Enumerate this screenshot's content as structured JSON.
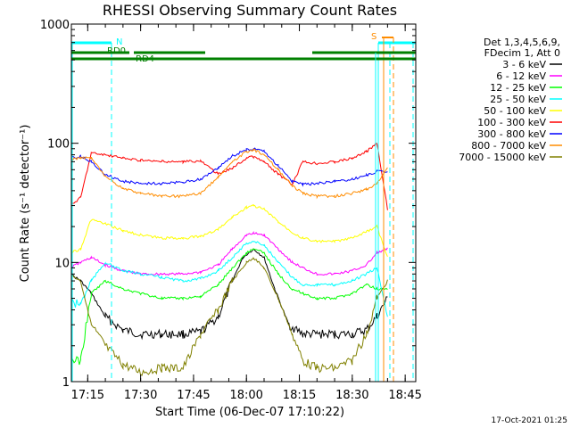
{
  "chart_data": {
    "type": "line",
    "title": "RHESSI Observing Summary Count Rates",
    "xlabel": "Start Time (06-Dec-07 17:10:22)",
    "ylabel": "Count Rate (s⁻¹ detector⁻¹)",
    "y_scale": "log",
    "ylim": [
      1,
      1000
    ],
    "xlim": [
      "17:10:22",
      "18:48:00"
    ],
    "x_ticks": [
      "17:15",
      "17:30",
      "17:45",
      "18:00",
      "18:15",
      "18:30",
      "18:45"
    ],
    "y_ticks": [
      "1",
      "10",
      "100",
      "1000"
    ],
    "grid": false,
    "legend_position": "right",
    "legend_header": [
      "Det 1,3,4,5,6,9,",
      "FDecim 1, Att 0"
    ],
    "timestamp": "17-Oct-2021 01:25",
    "series": [
      {
        "name": "3 - 6 keV",
        "color": "#000000",
        "x": [
          "17:10",
          "17:13",
          "17:16",
          "17:20",
          "17:25",
          "17:30",
          "17:36",
          "17:42",
          "17:47",
          "17:52",
          "17:56",
          "17:59",
          "18:02",
          "18:05",
          "18:08",
          "18:12",
          "18:16",
          "18:20",
          "18:25",
          "18:30",
          "18:34",
          "18:37",
          "18:40"
        ],
        "y": [
          8,
          7,
          5.5,
          3.5,
          2.7,
          2.5,
          2.5,
          2.5,
          2.6,
          3.5,
          7,
          11,
          13,
          11,
          6,
          3,
          2.5,
          2.5,
          2.5,
          2.5,
          2.7,
          3.5,
          5
        ]
      },
      {
        "name": "6 - 12 keV",
        "color": "#ff00ff",
        "x": [
          "17:10",
          "17:13",
          "17:16",
          "17:20",
          "17:25",
          "17:30",
          "17:36",
          "17:42",
          "17:47",
          "17:52",
          "17:56",
          "18:00",
          "18:02",
          "18:05",
          "18:09",
          "18:13",
          "18:16",
          "18:20",
          "18:25",
          "18:30",
          "18:34",
          "18:37",
          "18:40"
        ],
        "y": [
          9,
          10,
          11,
          9.5,
          8.5,
          8,
          8,
          8,
          8.3,
          9.5,
          13,
          17,
          17.5,
          17,
          13,
          10,
          9,
          8,
          8,
          8.5,
          9.5,
          12,
          13
        ]
      },
      {
        "name": "12 - 25 keV",
        "color": "#00ff00",
        "x": [
          "17:10",
          "17:13",
          "17:16",
          "17:20",
          "17:25",
          "17:30",
          "17:36",
          "17:42",
          "17:47",
          "17:52",
          "17:56",
          "18:00",
          "18:02",
          "18:05",
          "18:09",
          "18:13",
          "18:16",
          "18:20",
          "18:25",
          "18:30",
          "18:34",
          "18:37",
          "18:40"
        ],
        "y": [
          1.5,
          1.5,
          5.5,
          7,
          6,
          5.5,
          5,
          5,
          5.2,
          6.5,
          9,
          12,
          13,
          12,
          8,
          6,
          5.5,
          5,
          5,
          5.5,
          6.5,
          6,
          6
        ]
      },
      {
        "name": "25 - 50 keV",
        "color": "#00ffff",
        "x": [
          "17:10",
          "17:13",
          "17:16",
          "17:20",
          "17:25",
          "17:30",
          "17:36",
          "17:42",
          "17:47",
          "17:52",
          "17:56",
          "18:00",
          "18:02",
          "18:05",
          "18:09",
          "18:13",
          "18:16",
          "18:20",
          "18:25",
          "18:30",
          "18:34",
          "18:37",
          "18:40"
        ],
        "y": [
          4.5,
          4.5,
          7,
          10,
          8.5,
          8,
          7.5,
          7,
          7.3,
          8.5,
          11,
          14.5,
          15,
          14,
          10,
          7.5,
          6.5,
          6.5,
          6.5,
          7,
          8,
          9,
          3.5
        ]
      },
      {
        "name": "50 - 100 keV",
        "color": "#ffff00",
        "x": [
          "17:10",
          "17:13",
          "17:16",
          "17:20",
          "17:25",
          "17:30",
          "17:36",
          "17:42",
          "17:47",
          "17:52",
          "17:56",
          "18:00",
          "18:02",
          "18:05",
          "18:09",
          "18:13",
          "18:16",
          "18:20",
          "18:25",
          "18:30",
          "18:34",
          "18:37",
          "18:40"
        ],
        "y": [
          12,
          13,
          23,
          21,
          18.5,
          17,
          16,
          16,
          16.5,
          19,
          24,
          29,
          30,
          28,
          22,
          18,
          16,
          15,
          15,
          16,
          18,
          20,
          11
        ]
      },
      {
        "name": "100 - 300 keV",
        "color": "#ff0000",
        "x": [
          "17:10",
          "17:13",
          "17:16",
          "17:20",
          "17:25",
          "17:30",
          "17:36",
          "17:42",
          "17:47",
          "17:52",
          "17:56",
          "18:00",
          "18:02",
          "18:05",
          "18:09",
          "18:13",
          "18:16",
          "18:20",
          "18:25",
          "18:30",
          "18:34",
          "18:37",
          "18:40"
        ],
        "y": [
          30,
          35,
          83,
          80,
          75,
          72,
          70,
          70,
          71,
          55,
          62,
          75,
          77,
          70,
          55,
          45,
          70,
          68,
          70,
          75,
          85,
          100,
          28
        ]
      },
      {
        "name": "300 - 800 keV",
        "color": "#0000ff",
        "x": [
          "17:10",
          "17:13",
          "17:16",
          "17:20",
          "17:25",
          "17:30",
          "17:36",
          "17:42",
          "17:47",
          "17:52",
          "17:56",
          "18:00",
          "18:02",
          "18:05",
          "18:09",
          "18:13",
          "18:16",
          "18:20",
          "18:25",
          "18:30",
          "18:34",
          "18:37",
          "18:40"
        ],
        "y": [
          75,
          78,
          70,
          55,
          48,
          46,
          46,
          47,
          50,
          62,
          78,
          88,
          90,
          85,
          65,
          48,
          45,
          46,
          48,
          50,
          54,
          58,
          58
        ]
      },
      {
        "name": "800 - 7000 keV",
        "color": "#ff8c00",
        "x": [
          "17:10",
          "17:13",
          "17:16",
          "17:20",
          "17:25",
          "17:30",
          "17:36",
          "17:42",
          "17:47",
          "17:52",
          "17:56",
          "18:00",
          "18:02",
          "18:05",
          "18:09",
          "18:13",
          "18:16",
          "18:20",
          "18:25",
          "18:30",
          "18:34",
          "18:37",
          "18:40"
        ],
        "y": [
          72,
          76,
          75,
          52,
          42,
          38,
          36,
          36,
          38,
          52,
          70,
          85,
          88,
          80,
          60,
          44,
          38,
          36,
          36,
          38,
          41,
          46,
          62
        ]
      },
      {
        "name": "7000 - 15000 keV",
        "color": "#808000",
        "x": [
          "17:10",
          "17:13",
          "17:16",
          "17:20",
          "17:25",
          "17:30",
          "17:36",
          "17:42",
          "17:47",
          "17:52",
          "17:56",
          "18:00",
          "18:02",
          "18:05",
          "18:09",
          "18:13",
          "18:16",
          "18:20",
          "18:25",
          "18:30",
          "18:34",
          "18:37",
          "18:40"
        ],
        "y": [
          8,
          7,
          3,
          2,
          1.4,
          1.2,
          1.3,
          1.3,
          2.5,
          4,
          7,
          10,
          11,
          9,
          5,
          2.5,
          1.5,
          1.3,
          1.3,
          1.5,
          2.5,
          5,
          7
        ]
      }
    ],
    "annotations": [
      {
        "text": "N",
        "color": "#00ffff"
      },
      {
        "text": "RD0",
        "color": "#008000"
      },
      {
        "text": "RD4",
        "color": "#008000"
      },
      {
        "text": "S",
        "color": "#ff8c00"
      }
    ]
  }
}
